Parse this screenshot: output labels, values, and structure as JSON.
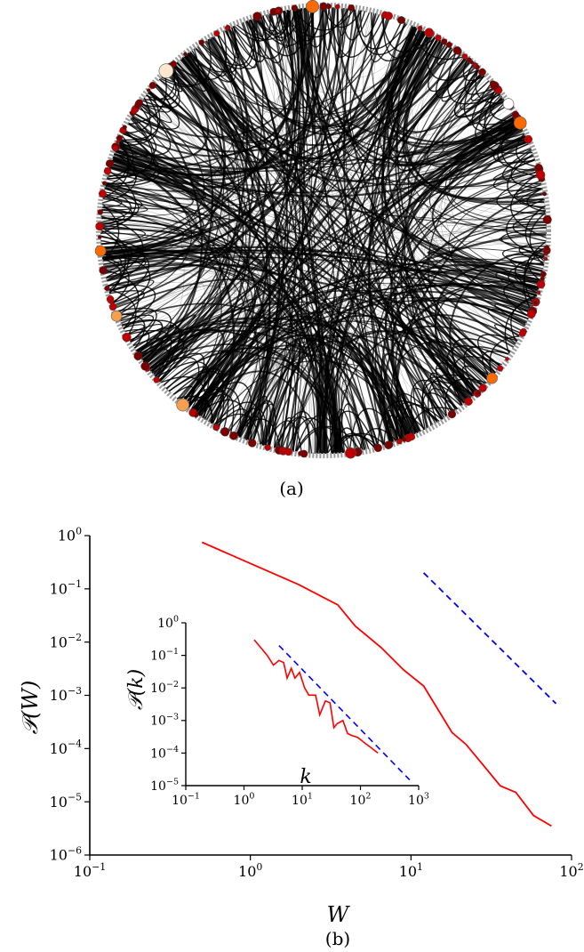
{
  "panel_a_label": "(a)",
  "panel_b_label": "(b)",
  "colors": {
    "edge": "#000000",
    "node_dark": "#7a0000",
    "node_red": "#c00000",
    "node_orange": "#ff6a00",
    "node_light": "#f5a050",
    "node_pale": "#fde7cf",
    "ring": "#9a9a9a",
    "data_line": "#ff0000",
    "fit_line": "#0000ff"
  },
  "chart_data": [
    {
      "type": "line",
      "xlabel": "W",
      "ylabel": "𝒫(W)",
      "x_scale": "log",
      "y_scale": "log",
      "xlim": [
        0.1,
        100
      ],
      "ylim": [
        1e-06,
        1
      ],
      "x_ticks": [
        {
          "value": 0.1,
          "base": "10",
          "exp": "−1"
        },
        {
          "value": 1,
          "base": "10",
          "exp": "0"
        },
        {
          "value": 10,
          "base": "10",
          "exp": "1"
        },
        {
          "value": 100,
          "base": "10",
          "exp": "2"
        }
      ],
      "y_ticks": [
        {
          "value": 1,
          "base": "10",
          "exp": "0"
        },
        {
          "value": 0.1,
          "base": "10",
          "exp": "−1"
        },
        {
          "value": 0.01,
          "base": "10",
          "exp": "−2"
        },
        {
          "value": 0.001,
          "base": "10",
          "exp": "−3"
        },
        {
          "value": 0.0001,
          "base": "10",
          "exp": "−4"
        },
        {
          "value": 1e-05,
          "base": "10",
          "exp": "−5"
        },
        {
          "value": 1e-06,
          "base": "10",
          "exp": "−6"
        }
      ],
      "series": [
        {
          "style": "solid",
          "color": "#ff0000",
          "x": [
            0.5,
            1.0,
            2.0,
            3.5,
            4.5,
            6.5,
            9.0,
            12.0,
            18.0,
            22.0,
            28.0,
            36.0,
            45.0,
            58.0,
            75.0
          ],
          "y": [
            0.75,
            0.3,
            0.12,
            0.05,
            0.02,
            0.008,
            0.003,
            0.0015,
            0.0002,
            0.00012,
            5e-05,
            2e-05,
            1.5e-05,
            5.5e-06,
            3.5e-06
          ]
        },
        {
          "style": "dashed",
          "color": "#0000ff",
          "x": [
            12,
            80
          ],
          "y": [
            0.2,
            0.0007
          ]
        }
      ]
    },
    {
      "type": "line",
      "inset": true,
      "xlabel": "k",
      "ylabel": "𝒫(k)",
      "x_scale": "log",
      "y_scale": "log",
      "xlim": [
        0.1,
        1000
      ],
      "ylim": [
        1e-05,
        1
      ],
      "x_ticks": [
        {
          "value": 0.1,
          "base": "10",
          "exp": "−1"
        },
        {
          "value": 1,
          "base": "10",
          "exp": "0"
        },
        {
          "value": 10,
          "base": "10",
          "exp": "1"
        },
        {
          "value": 100,
          "base": "10",
          "exp": "2"
        },
        {
          "value": 1000,
          "base": "10",
          "exp": "3"
        }
      ],
      "y_ticks": [
        {
          "value": 1,
          "base": "10",
          "exp": "0"
        },
        {
          "value": 0.1,
          "base": "10",
          "exp": "−1"
        },
        {
          "value": 0.01,
          "base": "10",
          "exp": "−2"
        },
        {
          "value": 0.001,
          "base": "10",
          "exp": "−3"
        },
        {
          "value": 0.0001,
          "base": "10",
          "exp": "−4"
        },
        {
          "value": 1e-05,
          "base": "10",
          "exp": "−5"
        }
      ],
      "series": [
        {
          "style": "solid",
          "color": "#ff0000",
          "x": [
            1.5,
            2.5,
            3.2,
            4.0,
            4.8,
            5.5,
            6.5,
            7.5,
            9.0,
            11,
            13,
            17,
            20,
            25,
            30,
            35,
            40,
            50,
            60,
            70,
            90,
            120,
            150,
            200
          ],
          "y": [
            0.3,
            0.1,
            0.05,
            0.07,
            0.06,
            0.02,
            0.04,
            0.02,
            0.03,
            0.01,
            0.006,
            0.006,
            0.0015,
            0.004,
            0.0035,
            0.0006,
            0.0008,
            0.001,
            0.0004,
            0.00035,
            0.0003,
            0.0002,
            0.00015,
            0.0001
          ]
        },
        {
          "style": "dashed",
          "color": "#0000ff",
          "x": [
            4,
            700
          ],
          "y": [
            0.2,
            1.5e-05
          ]
        }
      ]
    }
  ]
}
